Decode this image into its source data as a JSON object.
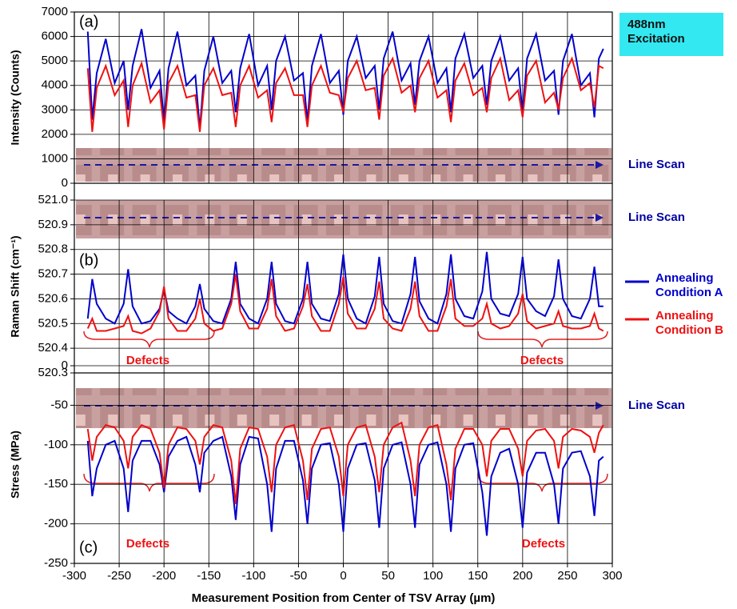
{
  "chart_data": [
    {
      "type": "line",
      "panel_label": "(a)",
      "ylabel": "Intensity (Counts)",
      "image_label": "Line Scan",
      "annotation": "488nm Excitation",
      "xlim": [
        -300,
        300
      ],
      "xticks": [
        -300,
        -250,
        -200,
        -150,
        -100,
        -50,
        0,
        50,
        100,
        150,
        200,
        250,
        300
      ],
      "ylim": [
        0,
        7000
      ],
      "yticks": [
        0,
        1000,
        2000,
        3000,
        4000,
        5000,
        6000,
        7000
      ],
      "grid": true,
      "x": [
        -285,
        -280,
        -275,
        -265,
        -255,
        -245,
        -240,
        -235,
        -225,
        -215,
        -205,
        -200,
        -195,
        -185,
        -175,
        -165,
        -160,
        -155,
        -145,
        -135,
        -125,
        -120,
        -115,
        -105,
        -95,
        -85,
        -80,
        -75,
        -65,
        -55,
        -45,
        -40,
        -35,
        -25,
        -15,
        -5,
        0,
        5,
        15,
        25,
        35,
        40,
        45,
        55,
        65,
        75,
        80,
        85,
        95,
        105,
        115,
        120,
        125,
        135,
        145,
        155,
        160,
        165,
        175,
        185,
        195,
        200,
        205,
        215,
        225,
        235,
        240,
        245,
        255,
        265,
        275,
        280,
        285,
        290
      ],
      "series": [
        {
          "color": "#0000cc",
          "values": [
            6200,
            2600,
            4500,
            5900,
            4100,
            5000,
            3000,
            4800,
            6300,
            3900,
            4600,
            2500,
            4700,
            6200,
            4000,
            4400,
            2200,
            4600,
            6000,
            4100,
            4600,
            2900,
            4700,
            6100,
            4000,
            4800,
            3000,
            5000,
            6000,
            4200,
            4500,
            2500,
            4800,
            6100,
            4100,
            4600,
            2800,
            5000,
            6000,
            4300,
            4800,
            3000,
            5100,
            6200,
            4200,
            4900,
            3200,
            5000,
            6000,
            4100,
            4700,
            2900,
            5100,
            6100,
            4300,
            4800,
            3200,
            5000,
            6000,
            4200,
            4700,
            2900,
            5100,
            6100,
            4200,
            4600,
            2800,
            5000,
            6100,
            4000,
            4500,
            2700,
            5100,
            5500
          ]
        },
        {
          "color": "#ee1111",
          "values": [
            4700,
            2100,
            3900,
            4800,
            3600,
            4200,
            2300,
            4000,
            4900,
            3300,
            3800,
            2200,
            4100,
            4800,
            3500,
            3600,
            2100,
            4000,
            4700,
            3600,
            3700,
            2300,
            4000,
            4800,
            3500,
            3800,
            2500,
            4100,
            4700,
            3600,
            3600,
            2300,
            4000,
            4800,
            3700,
            3600,
            2900,
            4300,
            5000,
            3800,
            3900,
            2600,
            4400,
            5100,
            3700,
            4000,
            2900,
            4300,
            5000,
            3500,
            3800,
            2500,
            4200,
            4900,
            3600,
            3900,
            2900,
            4300,
            5100,
            3400,
            3800,
            2700,
            4400,
            5000,
            3300,
            3700,
            3000,
            4300,
            5100,
            3800,
            4100,
            3100,
            4800,
            4700
          ]
        }
      ]
    },
    {
      "type": "line",
      "panel_label": "(b)",
      "ylabel": "Raman Shift (cm⁻¹)",
      "image_label": "Line Scan",
      "annotations": [
        "Defects",
        "Defects"
      ],
      "xlim": [
        -300,
        300
      ],
      "xticks": [
        -300,
        -250,
        -200,
        -150,
        -100,
        -50,
        0,
        50,
        100,
        150,
        200,
        250,
        300
      ],
      "ylim": [
        520.3,
        521
      ],
      "yticks": [
        520.3,
        520.4,
        520.5,
        520.6,
        520.7,
        520.8,
        520.9,
        {
          "value": 521,
          "label": "521.0"
        }
      ],
      "grid": true,
      "x": [
        -285,
        -280,
        -275,
        -265,
        -255,
        -245,
        -240,
        -235,
        -225,
        -215,
        -205,
        -200,
        -195,
        -185,
        -175,
        -165,
        -160,
        -155,
        -145,
        -135,
        -125,
        -120,
        -115,
        -105,
        -95,
        -85,
        -80,
        -75,
        -65,
        -55,
        -45,
        -40,
        -35,
        -25,
        -15,
        -5,
        0,
        5,
        15,
        25,
        35,
        40,
        45,
        55,
        65,
        75,
        80,
        85,
        95,
        105,
        115,
        120,
        125,
        135,
        145,
        155,
        160,
        165,
        175,
        185,
        195,
        200,
        205,
        215,
        225,
        235,
        240,
        245,
        255,
        265,
        275,
        280,
        285,
        290
      ],
      "series": [
        {
          "name": "Annealing Condition A",
          "color": "#0000cc",
          "values": [
            520.52,
            520.68,
            520.58,
            520.52,
            520.5,
            520.58,
            520.72,
            520.57,
            520.5,
            520.51,
            520.56,
            520.64,
            520.55,
            520.52,
            520.5,
            520.57,
            520.66,
            520.56,
            520.51,
            520.5,
            520.6,
            520.75,
            520.58,
            520.52,
            520.5,
            520.6,
            520.75,
            520.58,
            520.51,
            520.5,
            520.6,
            520.75,
            520.58,
            520.52,
            520.51,
            520.62,
            520.78,
            520.6,
            520.52,
            520.5,
            520.61,
            520.77,
            520.58,
            520.51,
            520.5,
            520.62,
            520.77,
            520.59,
            520.52,
            520.5,
            520.62,
            520.78,
            520.6,
            520.53,
            520.52,
            520.63,
            520.79,
            520.6,
            520.54,
            520.53,
            520.62,
            520.77,
            520.6,
            520.55,
            520.53,
            520.61,
            520.76,
            520.6,
            520.53,
            520.52,
            520.6,
            520.73,
            520.57,
            520.57
          ]
        },
        {
          "name": "Annealing Condition B",
          "color": "#ee1111",
          "values": [
            520.48,
            520.52,
            520.47,
            520.47,
            520.48,
            520.49,
            520.53,
            520.47,
            520.46,
            520.48,
            520.55,
            520.65,
            520.52,
            520.47,
            520.47,
            520.52,
            520.6,
            520.5,
            520.47,
            520.48,
            520.58,
            520.7,
            520.55,
            520.48,
            520.48,
            520.56,
            520.68,
            520.53,
            520.47,
            520.48,
            520.57,
            520.66,
            520.53,
            520.47,
            520.47,
            520.58,
            520.69,
            520.54,
            520.48,
            520.48,
            520.56,
            520.67,
            520.52,
            520.48,
            520.47,
            520.56,
            520.67,
            520.53,
            520.47,
            520.47,
            520.57,
            520.68,
            520.52,
            520.49,
            520.49,
            520.52,
            520.58,
            520.5,
            520.48,
            520.49,
            520.54,
            520.62,
            520.51,
            520.48,
            520.49,
            520.5,
            520.55,
            520.49,
            520.48,
            520.48,
            520.49,
            520.54,
            520.48,
            520.47
          ]
        }
      ]
    },
    {
      "type": "line",
      "panel_label": "(c)",
      "ylabel": "Stress (MPa)",
      "image_label": "Line Scan",
      "annotations": [
        "Defects",
        "Defects"
      ],
      "xlabel": "Measurement Position from Center of TSV Array (µm)",
      "xlim": [
        -300,
        300
      ],
      "xticks": [
        -300,
        -250,
        -200,
        -150,
        -100,
        -50,
        0,
        50,
        100,
        150,
        200,
        250,
        300
      ],
      "ylim": [
        -250,
        0
      ],
      "yticks": [
        -250,
        -200,
        -150,
        -100,
        -50,
        0
      ],
      "grid": true,
      "x": [
        -285,
        -280,
        -275,
        -265,
        -255,
        -245,
        -240,
        -235,
        -225,
        -215,
        -205,
        -200,
        -195,
        -185,
        -175,
        -165,
        -160,
        -155,
        -145,
        -135,
        -125,
        -120,
        -115,
        -105,
        -95,
        -85,
        -80,
        -75,
        -65,
        -55,
        -45,
        -40,
        -35,
        -25,
        -15,
        -5,
        0,
        5,
        15,
        25,
        35,
        40,
        45,
        55,
        65,
        75,
        80,
        85,
        95,
        105,
        115,
        120,
        125,
        135,
        145,
        155,
        160,
        165,
        175,
        185,
        195,
        200,
        205,
        215,
        225,
        235,
        240,
        245,
        255,
        265,
        275,
        280,
        285,
        290
      ],
      "series": [
        {
          "color": "#0000cc",
          "values": [
            -95,
            -165,
            -130,
            -100,
            -95,
            -130,
            -185,
            -120,
            -95,
            -95,
            -125,
            -160,
            -115,
            -95,
            -90,
            -125,
            -160,
            -110,
            -95,
            -90,
            -140,
            -195,
            -125,
            -90,
            -92,
            -150,
            -210,
            -130,
            -95,
            -95,
            -145,
            -200,
            -130,
            -100,
            -98,
            -150,
            -210,
            -130,
            -100,
            -98,
            -145,
            -205,
            -130,
            -100,
            -97,
            -150,
            -205,
            -125,
            -100,
            -97,
            -150,
            -210,
            -130,
            -100,
            -98,
            -160,
            -215,
            -140,
            -110,
            -105,
            -150,
            -205,
            -135,
            -110,
            -110,
            -150,
            -200,
            -130,
            -110,
            -108,
            -140,
            -190,
            -120,
            -115
          ]
        },
        {
          "color": "#ee1111",
          "values": [
            -80,
            -120,
            -90,
            -75,
            -78,
            -95,
            -130,
            -90,
            -75,
            -80,
            -110,
            -155,
            -100,
            -78,
            -80,
            -95,
            -125,
            -90,
            -75,
            -78,
            -120,
            -175,
            -105,
            -78,
            -80,
            -115,
            -160,
            -100,
            -78,
            -75,
            -120,
            -170,
            -105,
            -80,
            -78,
            -115,
            -165,
            -100,
            -78,
            -75,
            -115,
            -160,
            -100,
            -78,
            -72,
            -120,
            -165,
            -100,
            -78,
            -75,
            -125,
            -170,
            -105,
            -80,
            -80,
            -100,
            -140,
            -95,
            -80,
            -80,
            -105,
            -140,
            -95,
            -82,
            -80,
            -95,
            -130,
            -90,
            -80,
            -82,
            -90,
            -110,
            -85,
            -75
          ]
        }
      ]
    }
  ]
}
